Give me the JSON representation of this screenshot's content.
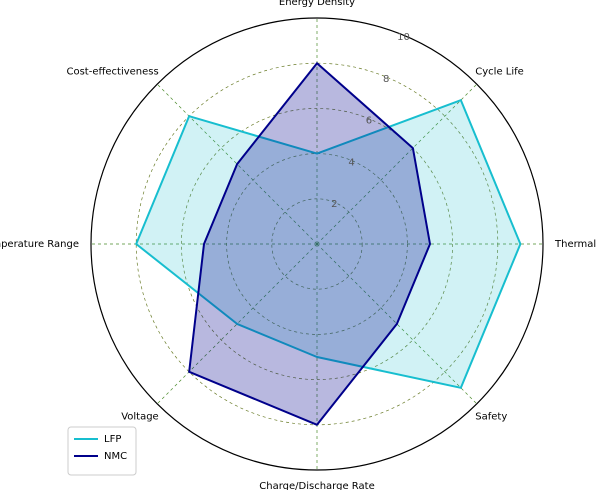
{
  "chart_data": {
    "type": "radar",
    "categories": [
      "Energy Density",
      "Cycle Life",
      "Thermal Stability",
      "Safety",
      "Charge/Discharge Rate",
      "Voltage",
      "Operating Temperature Range",
      "Cost-effectiveness"
    ],
    "series": [
      {
        "name": "LFP",
        "color": "#17becf",
        "values": [
          4,
          9,
          9,
          9,
          5,
          5,
          8,
          8
        ]
      },
      {
        "name": "NMC",
        "color": "#00008b",
        "values": [
          8,
          6,
          5,
          5,
          8,
          8,
          5,
          5
        ]
      }
    ],
    "rlim": [
      0,
      10
    ],
    "rticks": [
      2,
      4,
      6,
      8,
      10
    ],
    "grid": true,
    "legend": "lower left"
  }
}
